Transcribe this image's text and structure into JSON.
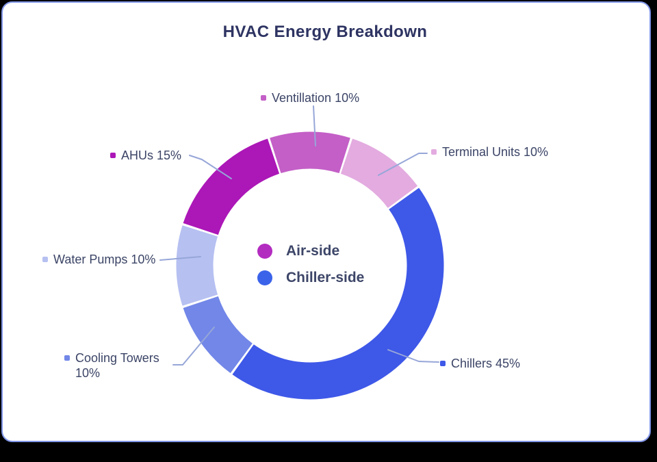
{
  "page": {
    "background_color": "#000000",
    "card_background": "#ffffff",
    "card_border_color": "#8095e8"
  },
  "chart_data": {
    "type": "pie",
    "subtype": "donut",
    "title": "HVAC Energy Breakdown",
    "unit": "%",
    "start_angle_deg_from_top": -18,
    "direction": "clockwise",
    "segments": [
      {
        "name": "Ventillation",
        "value": 10,
        "color": "#c45fc7",
        "label": "Ventillation 10%"
      },
      {
        "name": "Terminal Units",
        "value": 10,
        "color": "#e3abe0",
        "label": "Terminal Units 10%"
      },
      {
        "name": "Chillers",
        "value": 45,
        "color": "#3e58e8",
        "label": "Chillers 45%"
      },
      {
        "name": "Cooling Towers",
        "value": 10,
        "color": "#7287e8",
        "label": "Cooling Towers 10%"
      },
      {
        "name": "Water Pumps",
        "value": 10,
        "color": "#b6c0f1",
        "label": "Water Pumps 10%"
      },
      {
        "name": "AHUs",
        "value": 15,
        "color": "#ac17b7",
        "label": "AHUs 15%"
      }
    ],
    "legend": {
      "position": "center-of-donut",
      "items": [
        {
          "label": "Air-side",
          "color": "#b32cc0"
        },
        {
          "label": "Chiller-side",
          "color": "#3b63ea"
        }
      ]
    },
    "leader_line_color": "#96a6d8",
    "label_text_color": "#3b4466",
    "title_color": "#2e3462"
  }
}
